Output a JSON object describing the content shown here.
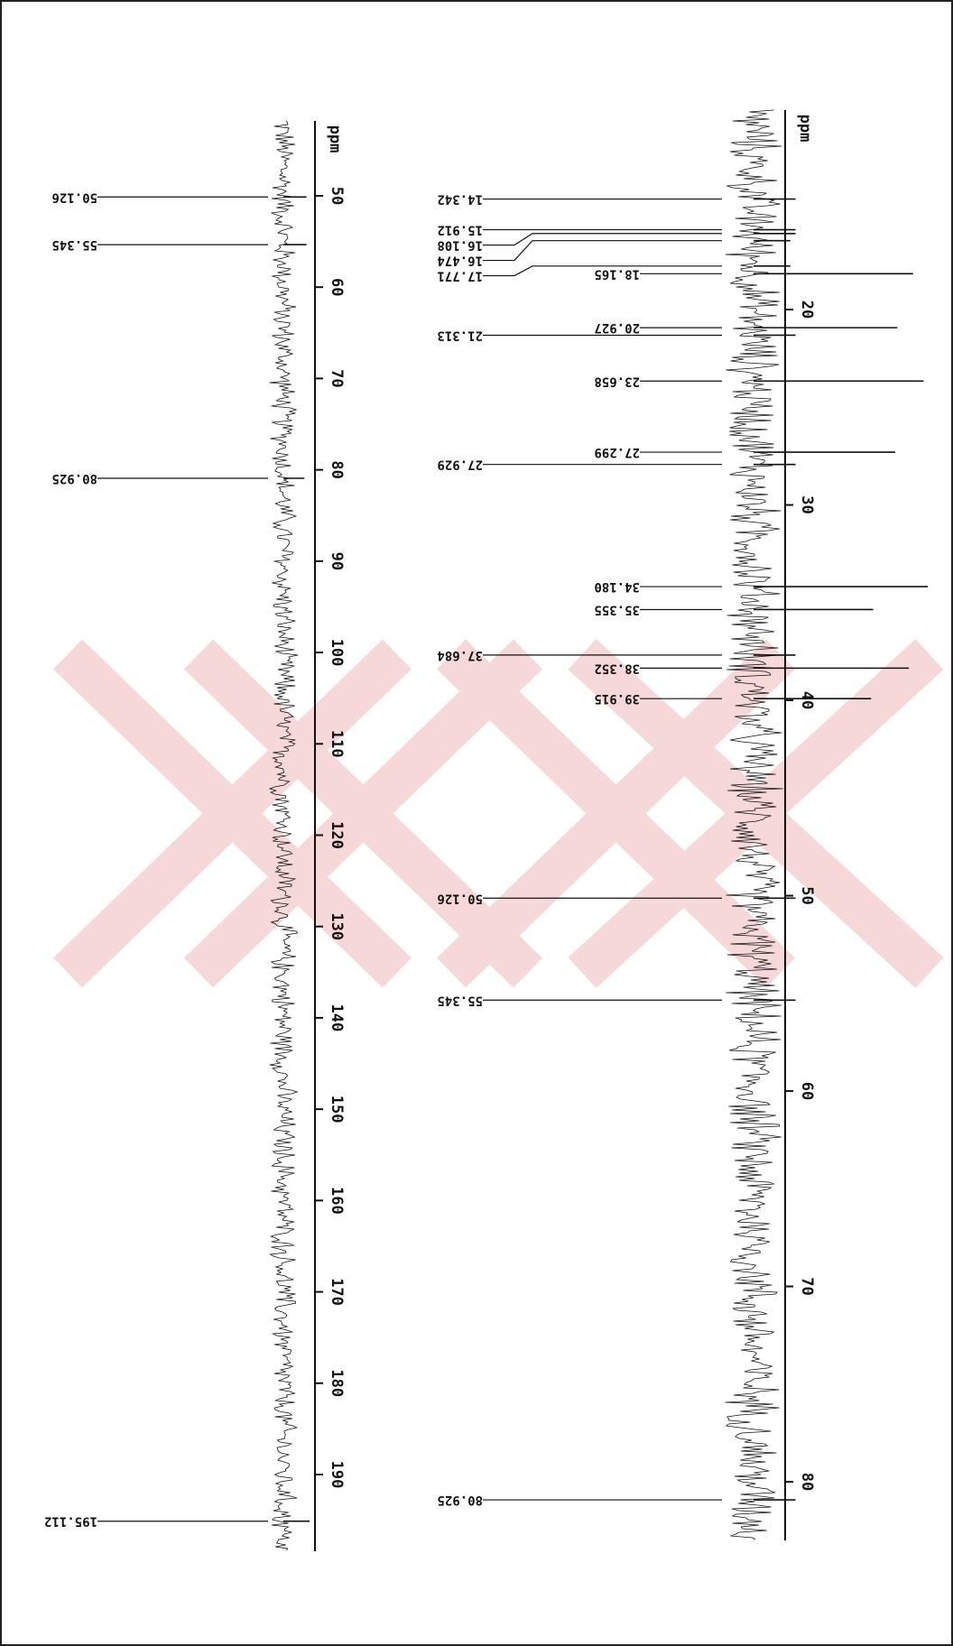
{
  "chart_data": [
    {
      "type": "spectrum",
      "x_axis_label": "ppm",
      "x": [
        50.126,
        55.345,
        80.925,
        195.112
      ],
      "peak_labels": [
        "50.126",
        "55.345",
        "80.925",
        "195.112"
      ],
      "values": [
        22,
        22,
        20,
        25
      ],
      "xlim": [
        41.8,
        198.4
      ],
      "xticks": [
        50,
        60,
        70,
        80,
        90,
        100,
        110,
        120,
        130,
        140,
        150,
        160,
        170,
        180,
        190
      ],
      "color": "#111111"
    },
    {
      "type": "spectrum",
      "x_axis_label": "ppm",
      "x": [
        14.342,
        15.912,
        16.108,
        16.474,
        17.771,
        18.165,
        20.927,
        21.313,
        23.658,
        27.299,
        27.929,
        34.18,
        35.355,
        37.684,
        38.352,
        39.915,
        50.126,
        55.345,
        80.925
      ],
      "peak_labels": [
        "14.342",
        "15.912",
        "16.108",
        "16.474",
        "17.771",
        "18.165",
        "20.927",
        "21.313",
        "23.658",
        "27.299",
        "27.929",
        "34.180",
        "35.355",
        "37.684",
        "38.352",
        "39.915",
        "50.126",
        "55.345",
        "80.925"
      ],
      "values": [
        40,
        40,
        40,
        35,
        35,
        152,
        137,
        40,
        162,
        135,
        40,
        166,
        114,
        40,
        148,
        112,
        40,
        40,
        40
      ],
      "xlim": [
        9.79,
        83.0
      ],
      "xticks": [
        20,
        30,
        40,
        50,
        60,
        70,
        80
      ],
      "color": "#111111"
    }
  ]
}
